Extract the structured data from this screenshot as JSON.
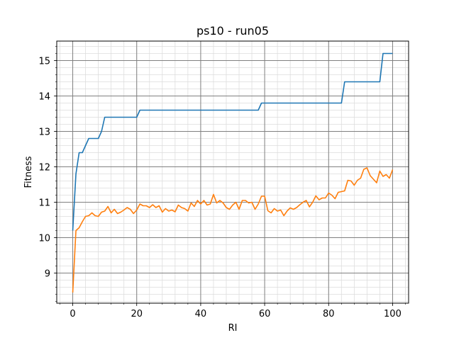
{
  "chart_data": {
    "type": "line",
    "title": "ps10 - run05",
    "xlabel": "RI",
    "ylabel": "Fitness",
    "xlim": [
      -5,
      105
    ],
    "ylim": [
      8.15,
      15.55
    ],
    "x_ticks": [
      0,
      20,
      40,
      60,
      80,
      100
    ],
    "y_ticks": [
      9,
      10,
      11,
      12,
      13,
      14,
      15
    ],
    "x_tick_labels": [
      "0",
      "20",
      "40",
      "60",
      "80",
      "100"
    ],
    "y_tick_labels": [
      "9",
      "10",
      "11",
      "12",
      "13",
      "14",
      "15"
    ],
    "x_minor_step": 4,
    "y_minor_step": 0.2,
    "grid": true,
    "series": [
      {
        "color": "#1f77b4",
        "x": [
          0,
          1,
          2,
          3,
          4,
          5,
          6,
          7,
          8,
          9,
          10,
          20,
          21,
          57,
          58,
          59,
          84,
          85,
          96,
          97,
          100
        ],
        "y": [
          10.2,
          11.8,
          12.4,
          12.4,
          12.6,
          12.8,
          12.8,
          12.8,
          12.8,
          13.0,
          13.4,
          13.4,
          13.6,
          13.6,
          13.6,
          13.8,
          13.8,
          14.4,
          14.4,
          15.2,
          15.2
        ]
      },
      {
        "color": "#ff7f0e",
        "x": [
          0,
          1,
          2,
          3,
          4,
          5,
          6,
          7,
          8,
          9,
          10,
          11,
          12,
          13,
          14,
          15,
          16,
          17,
          18,
          19,
          20,
          21,
          22,
          23,
          24,
          25,
          26,
          27,
          28,
          29,
          30,
          31,
          32,
          33,
          34,
          35,
          36,
          37,
          38,
          39,
          40,
          41,
          42,
          43,
          44,
          45,
          46,
          47,
          48,
          49,
          50,
          51,
          52,
          53,
          54,
          55,
          56,
          57,
          58,
          59,
          60,
          61,
          62,
          63,
          64,
          65,
          66,
          67,
          68,
          69,
          70,
          71,
          72,
          73,
          74,
          75,
          76,
          77,
          78,
          79,
          80,
          81,
          82,
          83,
          84,
          85,
          86,
          87,
          88,
          89,
          90,
          91,
          92,
          93,
          94,
          95,
          96,
          97,
          98,
          99,
          100
        ],
        "y": [
          8.45,
          10.2,
          10.28,
          10.45,
          10.6,
          10.62,
          10.7,
          10.62,
          10.6,
          10.72,
          10.75,
          10.88,
          10.7,
          10.8,
          10.68,
          10.72,
          10.78,
          10.85,
          10.8,
          10.68,
          10.78,
          10.95,
          10.9,
          10.9,
          10.85,
          10.93,
          10.85,
          10.9,
          10.72,
          10.82,
          10.75,
          10.78,
          10.73,
          10.92,
          10.85,
          10.82,
          10.75,
          10.98,
          10.88,
          11.05,
          10.95,
          11.05,
          10.92,
          10.95,
          11.22,
          10.98,
          11.05,
          10.98,
          10.85,
          10.8,
          10.92,
          11.0,
          10.8,
          11.05,
          11.05,
          10.98,
          11.0,
          10.8,
          10.95,
          11.17,
          11.17,
          10.76,
          10.7,
          10.82,
          10.75,
          10.78,
          10.62,
          10.75,
          10.84,
          10.8,
          10.85,
          10.93,
          11.0,
          11.05,
          10.87,
          11.0,
          11.18,
          11.07,
          11.12,
          11.12,
          11.26,
          11.2,
          11.1,
          11.28,
          11.3,
          11.32,
          11.62,
          11.6,
          11.48,
          11.62,
          11.68,
          11.93,
          11.97,
          11.75,
          11.65,
          11.55,
          11.88,
          11.73,
          11.78,
          11.68,
          11.92
        ]
      }
    ]
  }
}
